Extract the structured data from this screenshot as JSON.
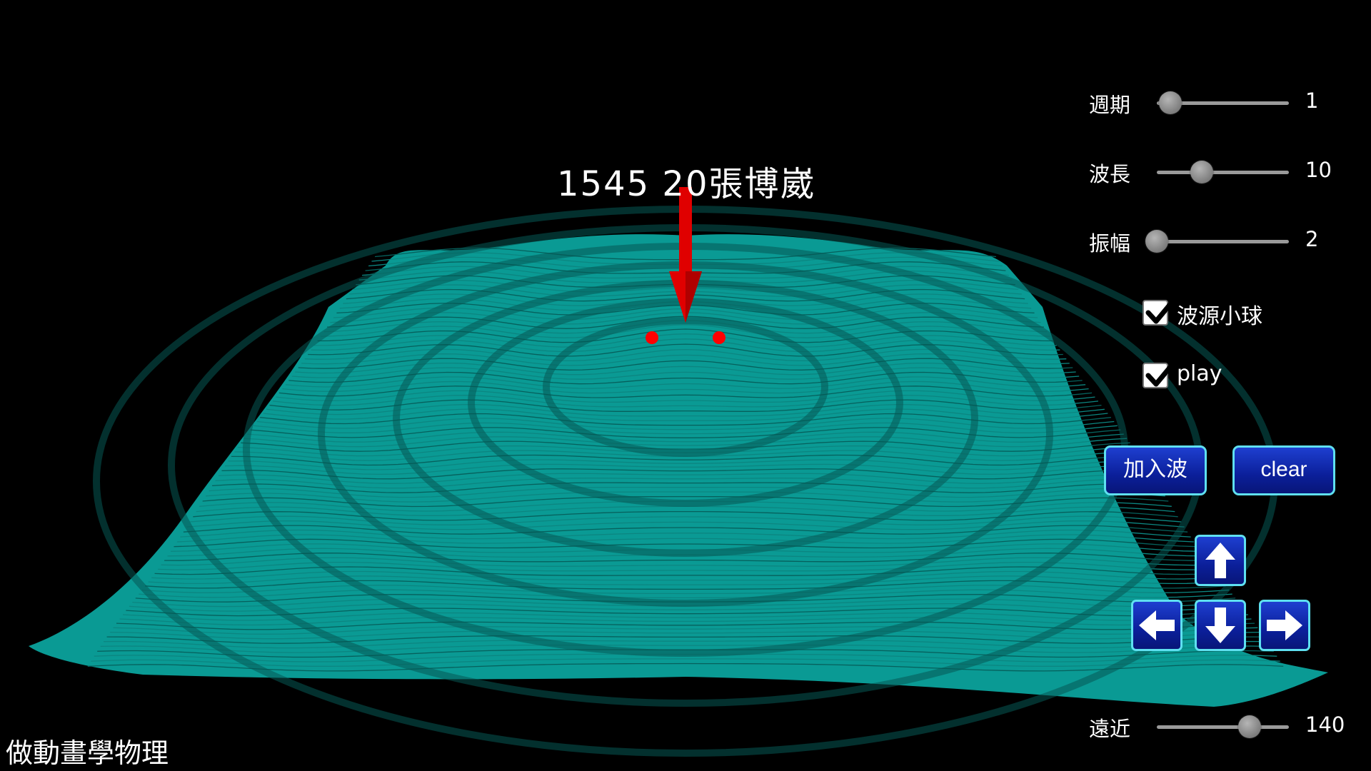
{
  "scene": {
    "title": "1545 20張博崴",
    "surface_color": "#0a9a94",
    "marker_color": "#ff0000"
  },
  "watermark": "做動畫學物理",
  "sliders": [
    {
      "label": "週期",
      "value": "1",
      "level": 0.1
    },
    {
      "label": "波長",
      "value": "10",
      "level": 0.34
    },
    {
      "label": "振幅",
      "value": "2",
      "level": 0.0
    }
  ],
  "checkboxes": [
    {
      "label": "波源小球",
      "checked": true
    },
    {
      "label": "play",
      "checked": true
    }
  ],
  "buttons": {
    "add_wave": "加入波",
    "clear": "clear"
  },
  "arrow_pad": {
    "up_icon": "arrow-up-icon",
    "down_icon": "arrow-down-icon",
    "left_icon": "arrow-left-icon",
    "right_icon": "arrow-right-icon"
  },
  "distance_slider": {
    "label": "遠近",
    "value": "140",
    "level": 0.7
  }
}
